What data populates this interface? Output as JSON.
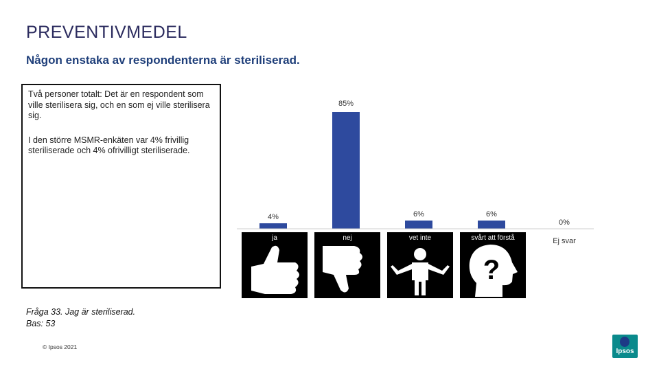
{
  "title": "PREVENTIVMEDEL",
  "subtitle": "Någon enstaka av respondenterna är steriliserad.",
  "note": {
    "paragraph1": "Två personer totalt: Det är en respondent som ville sterilisera sig, och en som ej ville sterilisera sig.",
    "paragraph2": "I den större MSMR-enkäten var 4% frivillig steriliserade och 4% ofrivilligt steriliserade."
  },
  "question": {
    "line1": "Fråga 33. Jag är steriliserad.",
    "line2": "Bas: 53"
  },
  "copyright": "© Ipsos 2021",
  "logo_text": "Ipsos",
  "colors": {
    "bar": "#2e4a9e",
    "icon_bg": "#000000",
    "logo": "#0a8a8c"
  },
  "chart_data": {
    "type": "bar",
    "categories": [
      "ja",
      "nej",
      "vet inte",
      "svårt att förstå",
      "Ej svar"
    ],
    "values": [
      4,
      85,
      6,
      6,
      0
    ],
    "data_labels": [
      "4%",
      "85%",
      "6%",
      "6%",
      "0%"
    ],
    "ylim": [
      0,
      100
    ],
    "icons": [
      "thumbs-up-icon",
      "thumbs-down-icon",
      "shrug-person-icon",
      "question-head-icon",
      null
    ]
  }
}
